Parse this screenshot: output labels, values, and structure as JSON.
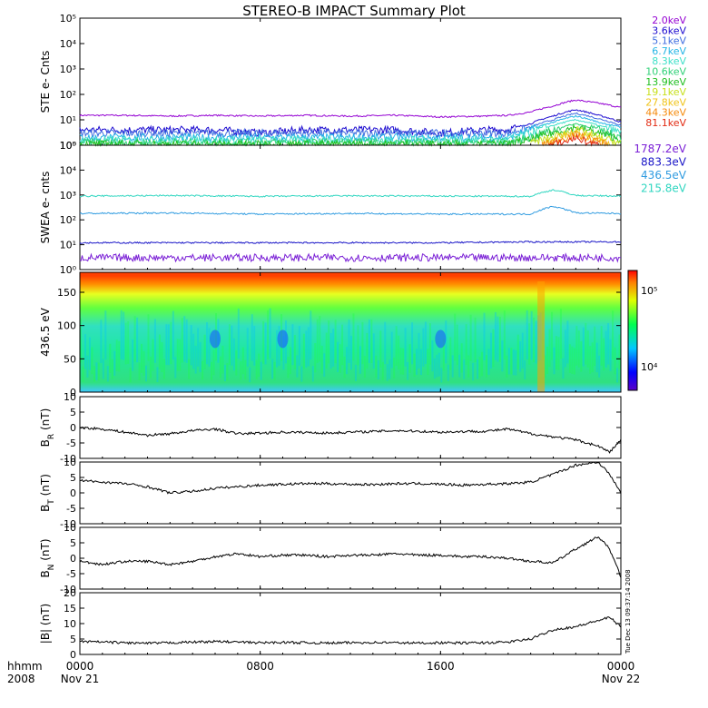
{
  "title": "STEREO-B IMPACT Summary Plot",
  "x_axis": {
    "ticks": [
      {
        "hhmm": "0000",
        "date": "Nov 21",
        "hour": 0
      },
      {
        "hhmm": "0800",
        "date": "",
        "hour": 8
      },
      {
        "hhmm": "1600",
        "date": "",
        "hour": 16
      },
      {
        "hhmm": "0000",
        "date": "Nov 22",
        "hour": 24
      }
    ],
    "label_top": "hhmm",
    "label_bottom": "2008"
  },
  "timestamp": "Tue Dec 13 09:37:14 2008",
  "colorbar": {
    "ticks": [
      "10^5",
      "10^4"
    ]
  },
  "chart_data": [
    {
      "panel": "ste",
      "type": "line",
      "ylabel": "STE e- Cnts",
      "log_y": true,
      "ylim": [
        1,
        100000
      ],
      "yticks": [
        1,
        10,
        100,
        1000,
        10000,
        100000
      ],
      "series": [
        {
          "name": "2.0keV",
          "color": "#9400d3",
          "x": [
            0,
            2,
            4,
            6,
            8,
            10,
            12,
            14,
            16,
            18,
            19,
            20,
            21,
            22,
            23,
            24
          ],
          "values": [
            15,
            15,
            14,
            15,
            14,
            15,
            14,
            15,
            13,
            14,
            15,
            20,
            35,
            60,
            45,
            30
          ]
        },
        {
          "name": "3.6keV",
          "color": "#1c0ad0",
          "x": [
            0,
            2,
            4,
            6,
            8,
            10,
            12,
            14,
            16,
            18,
            19,
            20,
            21,
            22,
            23,
            24
          ],
          "values": [
            4,
            4,
            4,
            4,
            3,
            4,
            4,
            4,
            3,
            4,
            4,
            7,
            14,
            25,
            15,
            8
          ]
        },
        {
          "name": "5.1keV",
          "color": "#3f6de0",
          "x": [
            0,
            2,
            4,
            6,
            8,
            10,
            12,
            14,
            16,
            18,
            19,
            20,
            21,
            22,
            23,
            24
          ],
          "values": [
            3,
            3,
            3,
            3,
            3,
            3,
            3,
            3,
            3,
            3,
            3,
            5,
            10,
            18,
            11,
            6
          ]
        },
        {
          "name": "6.7keV",
          "color": "#24b5e6",
          "x": [
            0,
            2,
            4,
            6,
            8,
            10,
            12,
            14,
            16,
            18,
            19,
            20,
            21,
            22,
            23,
            24
          ],
          "values": [
            2,
            2,
            2,
            2,
            2,
            2,
            2,
            2,
            2,
            2,
            2,
            4,
            8,
            14,
            8,
            5
          ]
        },
        {
          "name": "8.3keV",
          "color": "#3fe0c9",
          "x": [
            0,
            2,
            4,
            6,
            8,
            10,
            12,
            14,
            16,
            18,
            19,
            20,
            21,
            22,
            23,
            24
          ],
          "values": [
            1.6,
            1.6,
            1.6,
            1.6,
            1.6,
            1.6,
            1.6,
            1.6,
            1.6,
            1.6,
            1.6,
            3,
            6,
            10,
            6,
            3
          ]
        },
        {
          "name": "10.6keV",
          "color": "#2fd177",
          "x": [
            0,
            2,
            4,
            6,
            8,
            10,
            12,
            14,
            16,
            18,
            19,
            20,
            21,
            22,
            23,
            24
          ],
          "values": [
            1.3,
            1.3,
            1.3,
            1.3,
            1.3,
            1.3,
            1.3,
            1.3,
            1.3,
            1.3,
            1.3,
            2,
            4,
            7,
            4,
            2
          ]
        },
        {
          "name": "13.9keV",
          "color": "#1fbf1f",
          "x": [
            0,
            2,
            4,
            6,
            8,
            10,
            12,
            14,
            16,
            18,
            19,
            20,
            21,
            22,
            23,
            24
          ],
          "values": [
            1.1,
            1.1,
            1.1,
            1.1,
            1.1,
            1.1,
            1.1,
            1.1,
            1.1,
            1.1,
            1.1,
            1.6,
            3,
            5,
            3,
            1.6
          ]
        },
        {
          "name": "19.1keV",
          "color": "#c8e01e",
          "x": [
            20,
            21,
            22,
            23,
            24
          ],
          "values": [
            1.2,
            2,
            4,
            2,
            1.2
          ]
        },
        {
          "name": "27.8keV",
          "color": "#f0c419",
          "x": [
            20.5,
            21,
            22,
            23,
            23.5
          ],
          "values": [
            1.1,
            1.6,
            3,
            1.6,
            1.1
          ]
        },
        {
          "name": "44.3keV",
          "color": "#f58a0b",
          "x": [
            20.5,
            21,
            22,
            23,
            23.5
          ],
          "values": [
            1,
            1.4,
            2.5,
            1.4,
            1
          ]
        },
        {
          "name": "81.1keV",
          "color": "#e22a12",
          "x": [
            20.8,
            21.5,
            22,
            22.5,
            23
          ],
          "values": [
            1,
            1.3,
            2,
            1.3,
            1
          ]
        }
      ]
    },
    {
      "panel": "swea",
      "type": "line",
      "ylabel": "SWEA e- cnts",
      "log_y": true,
      "ylim": [
        1,
        100000
      ],
      "yticks": [
        1,
        10,
        100,
        1000,
        10000,
        100000
      ],
      "series": [
        {
          "name": "1787.2eV",
          "color": "#7a1fd6",
          "x": [
            0,
            4,
            8,
            12,
            16,
            20,
            24
          ],
          "values": [
            3,
            3,
            3,
            3,
            3,
            3,
            3
          ]
        },
        {
          "name": "883.3eV",
          "color": "#1a16c8",
          "x": [
            0,
            4,
            8,
            12,
            16,
            20,
            24
          ],
          "values": [
            12,
            12,
            12,
            12,
            12,
            13,
            13
          ]
        },
        {
          "name": "436.5eV",
          "color": "#2f9be0",
          "x": [
            0,
            4,
            8,
            12,
            16,
            20,
            21,
            22,
            24
          ],
          "values": [
            180,
            190,
            170,
            180,
            170,
            170,
            350,
            190,
            180
          ]
        },
        {
          "name": "215.8eV",
          "color": "#2fd6c0",
          "x": [
            0,
            4,
            8,
            12,
            16,
            20,
            21,
            22,
            24
          ],
          "values": [
            900,
            950,
            880,
            920,
            900,
            880,
            1600,
            950,
            900
          ]
        }
      ]
    },
    {
      "panel": "pad",
      "type": "heatmap",
      "ylabel": "436.5 eV",
      "ylim": [
        0,
        180
      ],
      "yticks": [
        0,
        50,
        100,
        150
      ],
      "colorbar_range": [
        5000,
        200000
      ]
    },
    {
      "panel": "br",
      "type": "line",
      "ylabel": "B_R (nT)",
      "ylim": [
        -10,
        10
      ],
      "yticks": [
        -10,
        -5,
        0,
        5,
        10
      ],
      "series": [
        {
          "color": "#000000",
          "x": [
            0,
            1,
            2,
            3,
            4,
            5,
            6,
            7,
            8,
            9,
            10,
            11,
            12,
            13,
            14,
            15,
            16,
            17,
            18,
            19,
            20,
            21,
            22,
            23,
            23.5,
            24
          ],
          "values": [
            0,
            -0.5,
            -1.5,
            -2.5,
            -2,
            -1,
            -0.5,
            -2,
            -1.8,
            -1.5,
            -1.6,
            -1.8,
            -1.5,
            -1.3,
            -1,
            -1.2,
            -1.5,
            -1.3,
            -1.2,
            -0.5,
            -2,
            -3,
            -4,
            -6,
            -8,
            -4
          ]
        }
      ]
    },
    {
      "panel": "bt",
      "type": "line",
      "ylabel": "B_T (nT)",
      "ylim": [
        -10,
        10
      ],
      "yticks": [
        -10,
        -5,
        0,
        5,
        10
      ],
      "series": [
        {
          "color": "#000000",
          "x": [
            0,
            1,
            2,
            3,
            4,
            5,
            6,
            7,
            8,
            9,
            10,
            11,
            12,
            13,
            14,
            15,
            16,
            17,
            18,
            19,
            20,
            21,
            22,
            23,
            23.5,
            24
          ],
          "values": [
            4,
            3.5,
            3,
            2,
            0,
            0.5,
            1.5,
            2,
            2.5,
            2.8,
            3,
            3,
            2.8,
            2.7,
            3,
            3,
            2.8,
            2.5,
            2.8,
            3,
            3.5,
            6,
            9,
            10,
            6,
            0
          ]
        }
      ]
    },
    {
      "panel": "bn",
      "type": "line",
      "ylabel": "B_N (nT)",
      "ylim": [
        -10,
        10
      ],
      "yticks": [
        -10,
        -5,
        0,
        5,
        10
      ],
      "series": [
        {
          "color": "#000000",
          "x": [
            0,
            1,
            2,
            3,
            4,
            5,
            6,
            7,
            8,
            9,
            10,
            11,
            12,
            13,
            14,
            15,
            16,
            17,
            18,
            19,
            20,
            21,
            22,
            23,
            23.5,
            24
          ],
          "values": [
            -1,
            -2,
            -1,
            -1,
            -2,
            -1,
            0.5,
            1.5,
            0.5,
            1,
            1,
            0.5,
            1,
            1,
            1.5,
            1,
            1,
            0.5,
            0.5,
            0,
            -1,
            -1.5,
            3,
            7,
            3,
            -6
          ]
        }
      ]
    },
    {
      "panel": "btot",
      "type": "line",
      "ylabel": "|B| (nT)",
      "ylim": [
        0,
        20
      ],
      "yticks": [
        0,
        5,
        10,
        15,
        20
      ],
      "series": [
        {
          "color": "#000000",
          "x": [
            0,
            1,
            2,
            3,
            4,
            5,
            6,
            7,
            8,
            9,
            10,
            11,
            12,
            13,
            14,
            15,
            16,
            17,
            18,
            19,
            20,
            21,
            22,
            23,
            23.5,
            24
          ],
          "values": [
            4.2,
            4,
            3.8,
            3.6,
            3.8,
            4,
            4.2,
            4,
            3.8,
            3.9,
            3.8,
            3.7,
            3.8,
            3.9,
            3.8,
            3.7,
            3.8,
            3.7,
            3.8,
            4,
            5,
            8,
            9,
            11,
            12,
            9
          ]
        }
      ]
    }
  ]
}
